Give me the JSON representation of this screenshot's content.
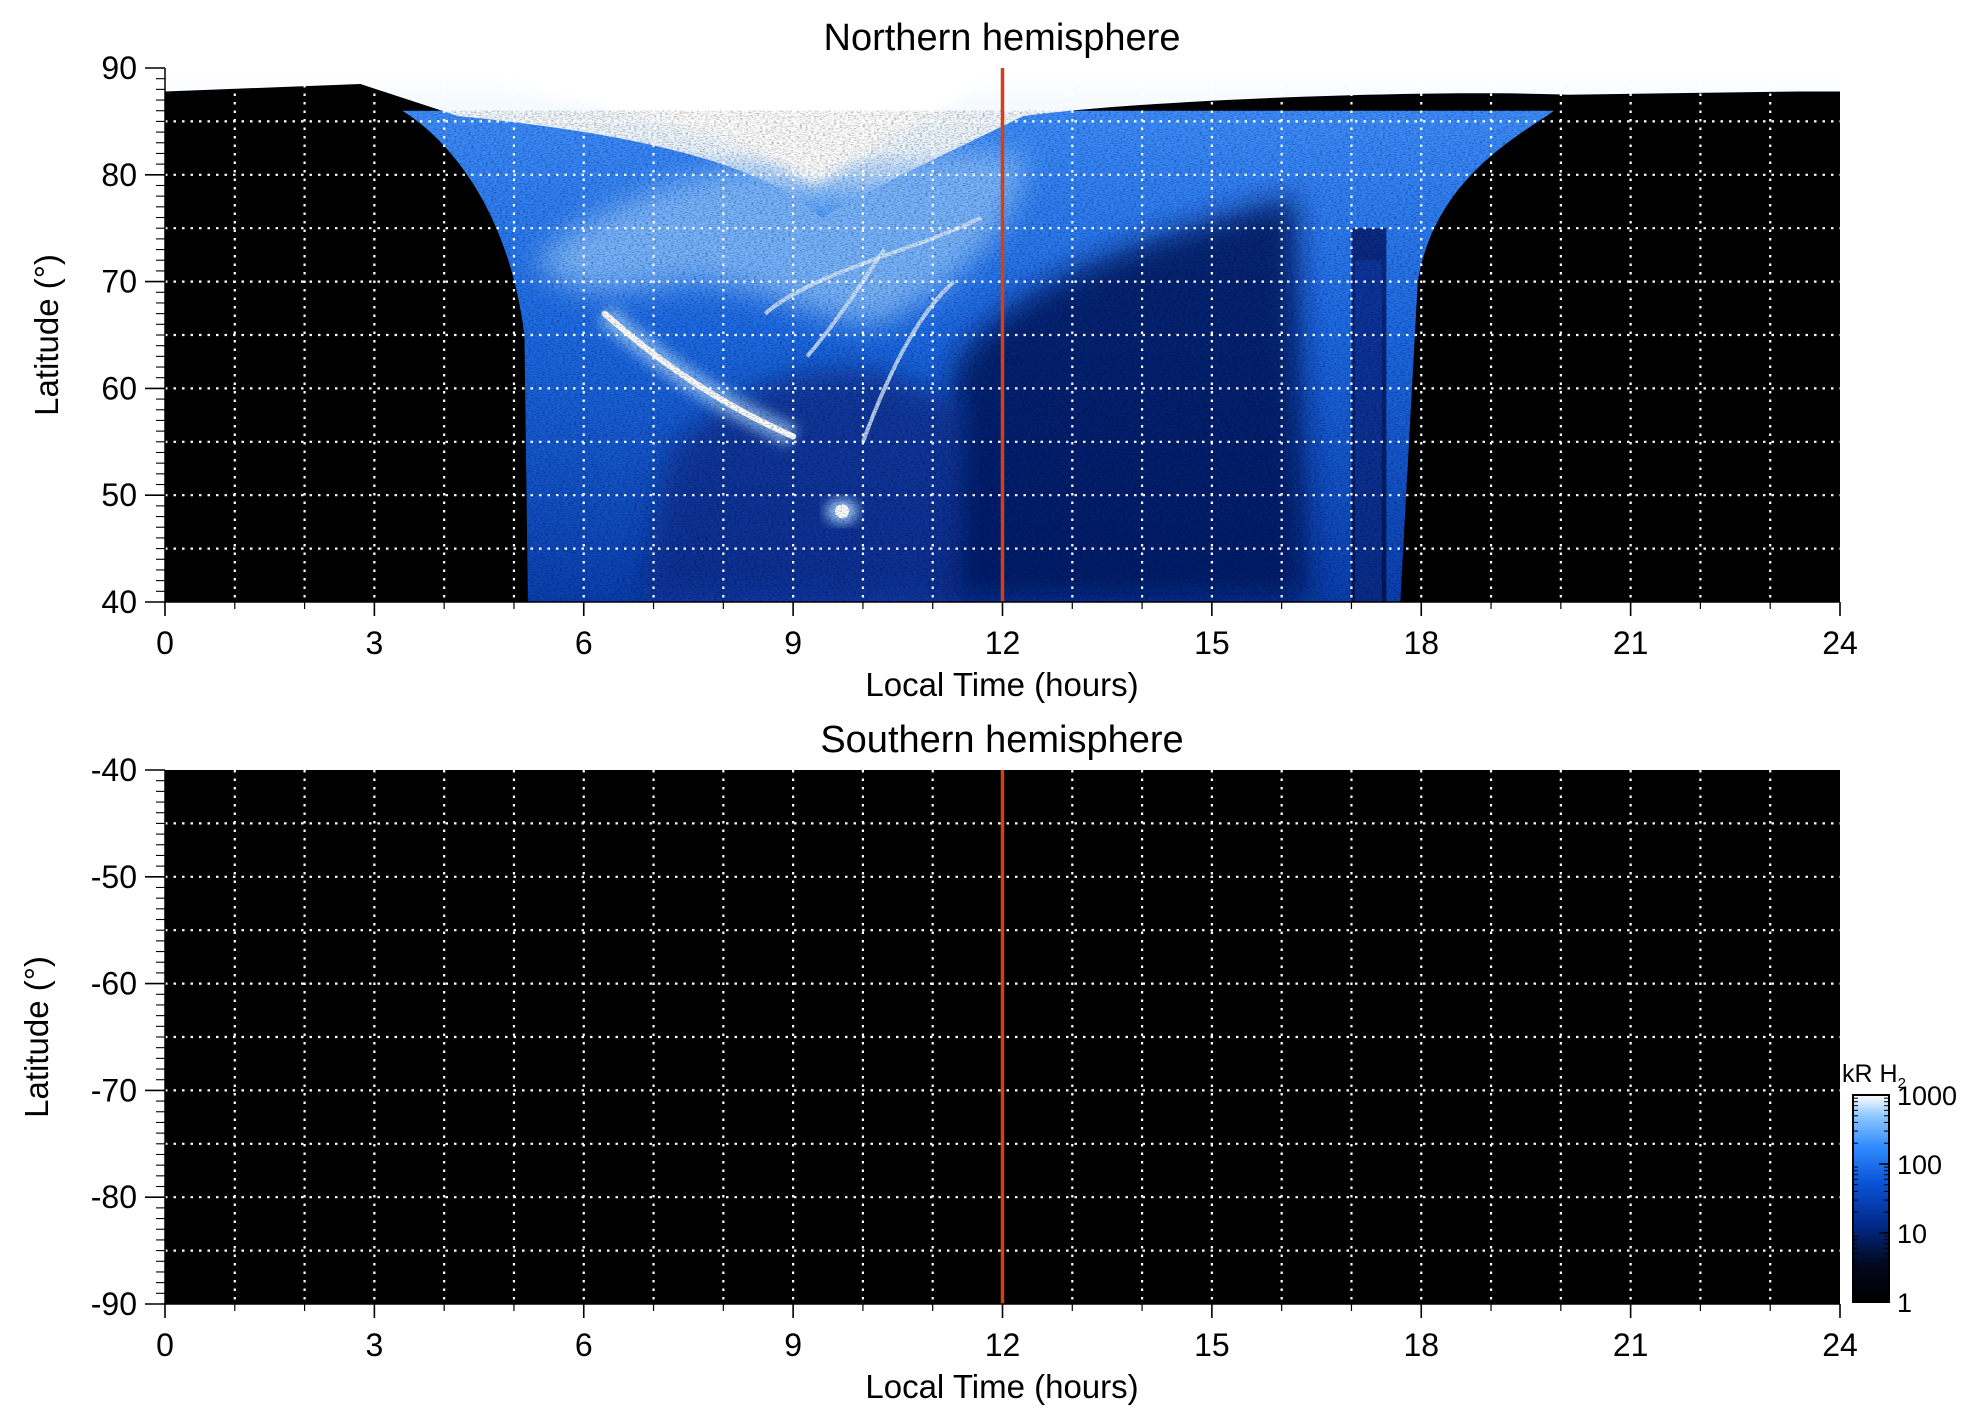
{
  "colors": {
    "background": "#000000",
    "grid": "#ffffff",
    "marker_line": "#d0401b",
    "colormap": [
      "#000000",
      "#01081e",
      "#022a8c",
      "#0a55d8",
      "#2f8cff",
      "#8fc8ff",
      "#ffffff"
    ]
  },
  "chart_data": [
    {
      "type": "heatmap",
      "title": "Northern hemisphere",
      "xlabel": "Local Time (hours)",
      "ylabel": "Latitude (°)",
      "xlim": [
        0,
        24
      ],
      "ylim": [
        40,
        90
      ],
      "xticks": [
        0,
        3,
        6,
        9,
        12,
        15,
        18,
        21,
        24
      ],
      "xtick_labels": [
        "0",
        "3",
        "6",
        "9",
        "12",
        "15",
        "18",
        "21",
        "24"
      ],
      "yticks": [
        40,
        50,
        60,
        70,
        80,
        90
      ],
      "ytick_labels": [
        "40",
        "50",
        "60",
        "70",
        "80",
        "90"
      ],
      "grid": true,
      "vertical_marker_x": 12,
      "emission": {
        "dayside_band_local_time": [
          5.2,
          19.5
        ],
        "bright_cap_latitude_min": 83,
        "bright_arc": [
          [
            6.3,
            67
          ],
          [
            7.5,
            60
          ],
          [
            8.5,
            57
          ],
          [
            9.0,
            55.5
          ]
        ],
        "bright_spot": [
          9.7,
          48.5
        ],
        "dusk_band_local_time": [
          17.0,
          17.5
        ]
      }
    },
    {
      "type": "heatmap",
      "title": "Southern hemisphere",
      "xlabel": "Local Time (hours)",
      "ylabel": "Latitude (°)",
      "xlim": [
        0,
        24
      ],
      "ylim": [
        -90,
        -40
      ],
      "xticks": [
        0,
        3,
        6,
        9,
        12,
        15,
        18,
        21,
        24
      ],
      "xtick_labels": [
        "0",
        "3",
        "6",
        "9",
        "12",
        "15",
        "18",
        "21",
        "24"
      ],
      "yticks": [
        -40,
        -50,
        -60,
        -70,
        -80,
        -90
      ],
      "ytick_labels": [
        "-40",
        "-50",
        "-60",
        "-70",
        "-80",
        "-90"
      ],
      "grid": true,
      "vertical_marker_x": 12
    }
  ],
  "colorbar": {
    "label": "kR H",
    "label_subscript": "2",
    "scale": "log",
    "range": [
      1,
      1000
    ],
    "ticks": [
      1,
      10,
      100,
      1000
    ],
    "tick_labels": [
      "1",
      "10",
      "100",
      "1000"
    ]
  }
}
